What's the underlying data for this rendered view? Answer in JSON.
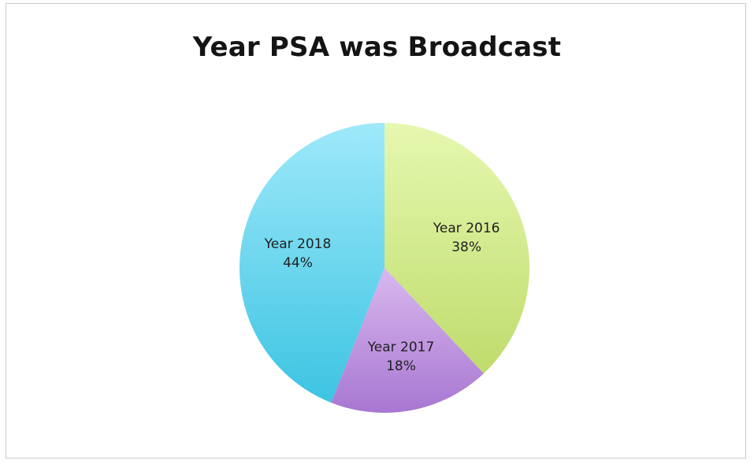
{
  "chart_data": {
    "type": "pie",
    "title": "Year PSA was Broadcast",
    "categories": [
      "Year 2016",
      "Year 2017",
      "Year 2018"
    ],
    "values": [
      38,
      18,
      44
    ],
    "value_labels": [
      "38%",
      "18%",
      "44%"
    ],
    "colors": [
      {
        "light": "#e6f8b0",
        "dark": "#bfdc6c"
      },
      {
        "light": "#d9b8ee",
        "dark": "#a877d2"
      },
      {
        "light": "#9fe9fa",
        "dark": "#3cc4e2"
      }
    ],
    "start_angle_deg": 0,
    "direction": "clockwise",
    "legend": "none"
  }
}
